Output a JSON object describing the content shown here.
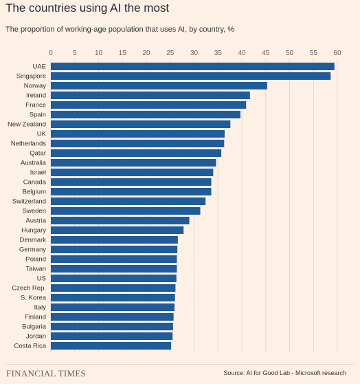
{
  "header": {
    "title": "The countries using AI the most",
    "subtitle": "The proportion of working-age population that uses AI, by country, %"
  },
  "footer": {
    "brand": "FINANCIAL TIMES",
    "source": "Source: AI for Good Lab - Microsoft research"
  },
  "colors": {
    "bar": "#1f5c99",
    "gridline": "#e3d9cf",
    "background": "#fdf1e6",
    "text": "#33302e"
  },
  "chart_data": {
    "type": "bar",
    "orientation": "horizontal",
    "title": "The countries using AI the most",
    "subtitle": "The proportion of working-age population that uses AI, by country, %",
    "xlim": [
      0,
      60
    ],
    "xticks": [
      0,
      5,
      10,
      15,
      20,
      25,
      30,
      35,
      40,
      45,
      50,
      55,
      60
    ],
    "grid": true,
    "categories": [
      "UAE",
      "Singapore",
      "Norway",
      "Ireland",
      "France",
      "Spain",
      "New Zealand",
      "UK",
      "Netherlands",
      "Qatar",
      "Australia",
      "Israel",
      "Canada",
      "Belgium",
      "Switzerland",
      "Sweden",
      "Austria",
      "Hungary",
      "Denmark",
      "Germany",
      "Poland",
      "Taiwan",
      "US",
      "Czech Rep.",
      "S. Korea",
      "Italy",
      "Finland",
      "Bulgaria",
      "Jordan",
      "Costa Rica"
    ],
    "values": [
      59.4,
      58.6,
      45.3,
      41.7,
      40.9,
      39.7,
      37.6,
      36.4,
      36.3,
      35.7,
      34.6,
      34.0,
      33.6,
      33.6,
      32.4,
      31.3,
      29.0,
      27.8,
      26.6,
      26.5,
      26.4,
      26.4,
      26.3,
      26.1,
      26.0,
      25.9,
      25.7,
      25.6,
      25.5,
      25.2
    ]
  }
}
